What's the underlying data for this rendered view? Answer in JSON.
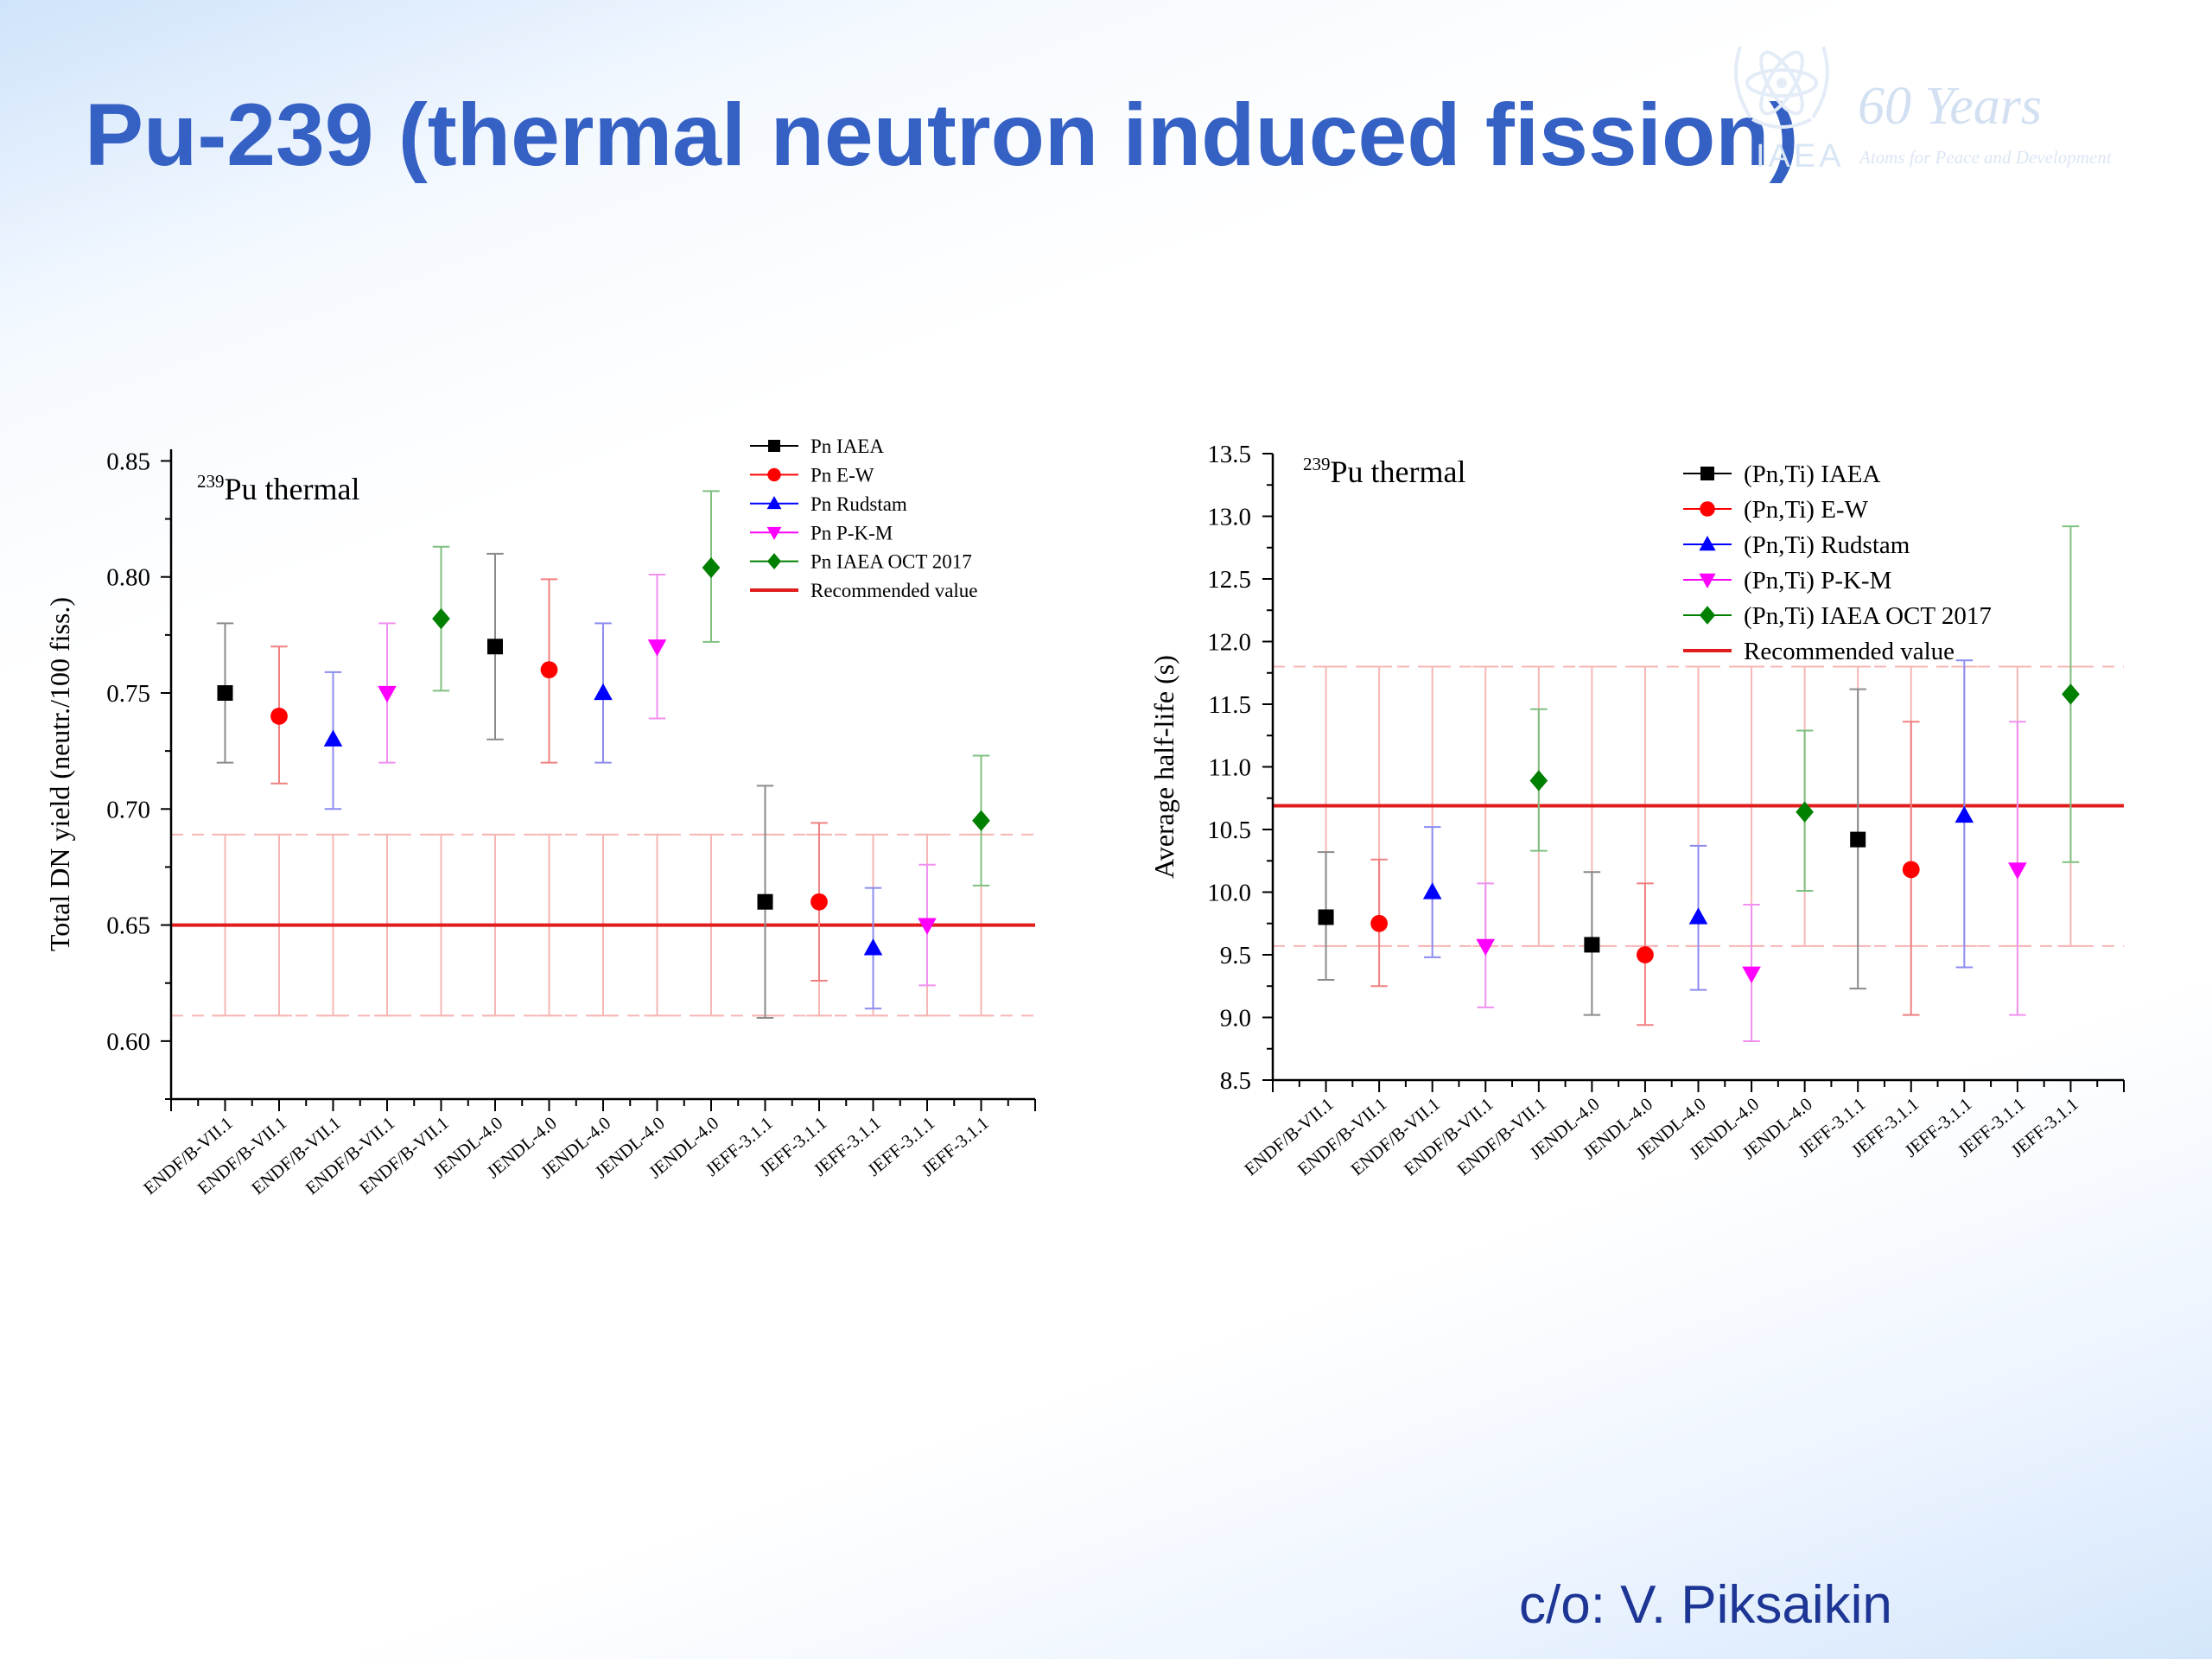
{
  "header": {
    "title": "Pu-239 (thermal neutron induced fission)"
  },
  "logo": {
    "org": "IAEA",
    "years": "60 Years",
    "tagline": "Atoms for Peace and Development"
  },
  "footer": {
    "credit": "c/o: V. Piksaikin"
  },
  "colors": {
    "title": "#3561c4",
    "credit": "#1d3594",
    "recommended": "#e11c1c",
    "band": "#f6b6b6"
  },
  "chart_data": [
    {
      "type": "scatter",
      "annotation_main": "Pu thermal",
      "annotation_sup": "239",
      "ylabel": "Total DN yield (neutr./100 fiss.)",
      "ylim": [
        0.575,
        0.855
      ],
      "yticks": [
        "0.60",
        "0.65",
        "0.70",
        "0.75",
        "0.80",
        "0.85"
      ],
      "categories": [
        "ENDF/B-VII.1",
        "ENDF/B-VII.1",
        "ENDF/B-VII.1",
        "ENDF/B-VII.1",
        "ENDF/B-VII.1",
        "JENDL-4.0",
        "JENDL-4.0",
        "JENDL-4.0",
        "JENDL-4.0",
        "JENDL-4.0",
        "JEFF-3.1.1",
        "JEFF-3.1.1",
        "JEFF-3.1.1",
        "JEFF-3.1.1",
        "JEFF-3.1.1"
      ],
      "legend_position": "top-right",
      "series": [
        {
          "name": "Pn IAEA",
          "marker": "square",
          "color": "#000000",
          "bar_color": "#8a8a8a",
          "points": [
            {
              "x": 0,
              "y": 0.75,
              "lo": 0.72,
              "hi": 0.78
            },
            {
              "x": 5,
              "y": 0.77,
              "lo": 0.73,
              "hi": 0.81
            },
            {
              "x": 10,
              "y": 0.66,
              "lo": 0.61,
              "hi": 0.71
            }
          ]
        },
        {
          "name": "Pn E-W",
          "marker": "circle",
          "color": "#ff0000",
          "bar_color": "#f08080",
          "points": [
            {
              "x": 1,
              "y": 0.74,
              "lo": 0.711,
              "hi": 0.77
            },
            {
              "x": 6,
              "y": 0.76,
              "lo": 0.72,
              "hi": 0.799
            },
            {
              "x": 11,
              "y": 0.66,
              "lo": 0.626,
              "hi": 0.694
            }
          ]
        },
        {
          "name": "Pn Rudstam",
          "marker": "triangle-up",
          "color": "#0000ff",
          "bar_color": "#8c8cf0",
          "points": [
            {
              "x": 2,
              "y": 0.73,
              "lo": 0.7,
              "hi": 0.759
            },
            {
              "x": 7,
              "y": 0.75,
              "lo": 0.72,
              "hi": 0.78
            },
            {
              "x": 12,
              "y": 0.64,
              "lo": 0.614,
              "hi": 0.666
            }
          ]
        },
        {
          "name": "Pn P-K-M",
          "marker": "triangle-down",
          "color": "#ff00ff",
          "bar_color": "#f090f0",
          "points": [
            {
              "x": 3,
              "y": 0.75,
              "lo": 0.72,
              "hi": 0.78
            },
            {
              "x": 8,
              "y": 0.77,
              "lo": 0.739,
              "hi": 0.801
            },
            {
              "x": 13,
              "y": 0.65,
              "lo": 0.624,
              "hi": 0.676
            }
          ]
        },
        {
          "name": "Pn IAEA OCT 2017",
          "marker": "diamond",
          "color": "#008000",
          "bar_color": "#7fc07f",
          "points": [
            {
              "x": 4,
              "y": 0.782,
              "lo": 0.751,
              "hi": 0.813
            },
            {
              "x": 9,
              "y": 0.804,
              "lo": 0.772,
              "hi": 0.837
            },
            {
              "x": 14,
              "y": 0.695,
              "lo": 0.667,
              "hi": 0.723
            }
          ]
        }
      ],
      "recommended": {
        "name": "Recommended value",
        "value": 0.65,
        "lo": 0.611,
        "hi": 0.689
      }
    },
    {
      "type": "scatter",
      "annotation_main": "Pu thermal",
      "annotation_sup": "239",
      "ylabel": "Average half-life (s)",
      "ylim": [
        8.5,
        13.5
      ],
      "yticks": [
        "8.5",
        "9.0",
        "9.5",
        "10.0",
        "10.5",
        "11.0",
        "11.5",
        "12.0",
        "12.5",
        "13.0",
        "13.5"
      ],
      "categories": [
        "ENDF/B-VII.1",
        "ENDF/B-VII.1",
        "ENDF/B-VII.1",
        "ENDF/B-VII.1",
        "ENDF/B-VII.1",
        "JENDL-4.0",
        "JENDL-4.0",
        "JENDL-4.0",
        "JENDL-4.0",
        "JENDL-4.0",
        "JEFF-3.1.1",
        "JEFF-3.1.1",
        "JEFF-3.1.1",
        "JEFF-3.1.1",
        "JEFF-3.1.1"
      ],
      "legend_position": "top-right",
      "series": [
        {
          "name": "(Pn,Ti) IAEA",
          "marker": "square",
          "color": "#000000",
          "bar_color": "#8a8a8a",
          "points": [
            {
              "x": 0,
              "y": 9.8,
              "lo": 9.3,
              "hi": 10.32
            },
            {
              "x": 5,
              "y": 9.58,
              "lo": 9.02,
              "hi": 10.16
            },
            {
              "x": 10,
              "y": 10.42,
              "lo": 9.23,
              "hi": 11.62
            }
          ]
        },
        {
          "name": "(Pn,Ti) E-W",
          "marker": "circle",
          "color": "#ff0000",
          "bar_color": "#f08080",
          "points": [
            {
              "x": 1,
              "y": 9.75,
              "lo": 9.25,
              "hi": 10.26
            },
            {
              "x": 6,
              "y": 9.5,
              "lo": 8.94,
              "hi": 10.07
            },
            {
              "x": 11,
              "y": 10.18,
              "lo": 9.02,
              "hi": 11.36
            }
          ]
        },
        {
          "name": "(Pn,Ti) Rudstam",
          "marker": "triangle-up",
          "color": "#0000ff",
          "bar_color": "#8c8cf0",
          "points": [
            {
              "x": 2,
              "y": 10.0,
              "lo": 9.48,
              "hi": 10.52
            },
            {
              "x": 7,
              "y": 9.8,
              "lo": 9.22,
              "hi": 10.37
            },
            {
              "x": 12,
              "y": 10.61,
              "lo": 9.4,
              "hi": 11.85
            }
          ]
        },
        {
          "name": "(Pn,Ti) P-K-M",
          "marker": "triangle-down",
          "color": "#ff00ff",
          "bar_color": "#f090f0",
          "points": [
            {
              "x": 3,
              "y": 9.57,
              "lo": 9.08,
              "hi": 10.07
            },
            {
              "x": 8,
              "y": 9.35,
              "lo": 8.81,
              "hi": 9.9
            },
            {
              "x": 13,
              "y": 10.18,
              "lo": 9.02,
              "hi": 11.36
            }
          ]
        },
        {
          "name": "(Pn,Ti) IAEA OCT 2017",
          "marker": "diamond",
          "color": "#008000",
          "bar_color": "#7fc07f",
          "points": [
            {
              "x": 4,
              "y": 10.89,
              "lo": 10.33,
              "hi": 11.46
            },
            {
              "x": 9,
              "y": 10.64,
              "lo": 10.01,
              "hi": 11.29
            },
            {
              "x": 14,
              "y": 11.58,
              "lo": 10.24,
              "hi": 12.92
            }
          ]
        }
      ],
      "recommended": {
        "name": "Recommended value",
        "value": 10.69,
        "lo": 9.57,
        "hi": 11.8
      }
    }
  ]
}
